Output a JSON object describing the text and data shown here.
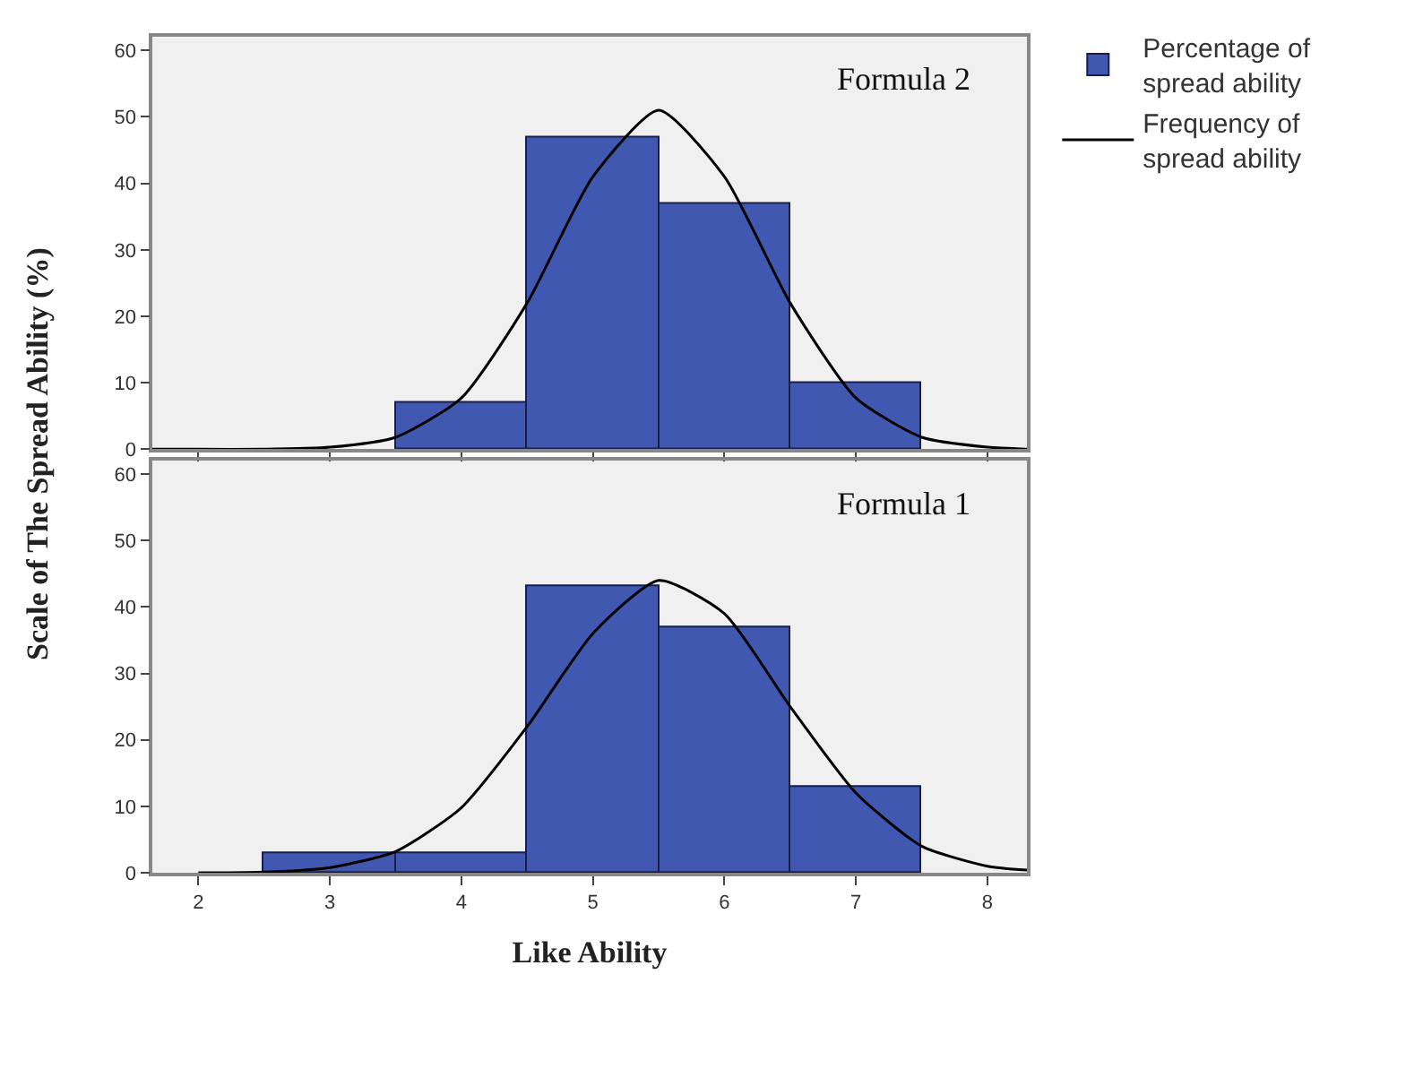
{
  "chart_data": [
    {
      "type": "histogram",
      "title": "Formula 2",
      "ylabel": "Scale of The Spread Ability (%)",
      "bins": [
        3.5,
        4.5,
        5.5,
        6.5,
        7.5
      ],
      "series": [
        {
          "name": "Percentage of spread ability",
          "color": "#4058b0",
          "values": [
            7,
            47,
            37,
            10
          ]
        },
        {
          "type": "line",
          "name": "Frequency of spread ability",
          "color": "#000000",
          "x": [
            1.65,
            2,
            2.5,
            3,
            3.5,
            4,
            4.5,
            5,
            5.5,
            6,
            6.5,
            7,
            7.5,
            8,
            8.3
          ],
          "values": [
            0,
            0,
            0,
            0.3,
            1.8,
            7.7,
            22,
            41,
            51,
            41,
            22,
            7.7,
            1.8,
            0.3,
            0
          ]
        }
      ],
      "xlim": [
        1.65,
        8.3
      ],
      "xticks": [
        2,
        3,
        4,
        5,
        6,
        7,
        8
      ],
      "ylim": [
        0,
        62
      ],
      "yticks": [
        0,
        10,
        20,
        30,
        40,
        50,
        60
      ],
      "tick_labels": "y",
      "grid": false,
      "legend": "top right"
    },
    {
      "type": "histogram",
      "title": "Formula 1",
      "xlabel": "Like Ability",
      "bins": [
        2.5,
        3.5,
        4.5,
        5.5,
        6.5,
        7.5
      ],
      "series": [
        {
          "color": "#4058b0",
          "values": [
            3,
            3,
            43,
            37,
            13
          ]
        },
        {
          "type": "line",
          "color": "#000000",
          "x": [
            2,
            2.5,
            3,
            3.5,
            4,
            4.5,
            5,
            5.5,
            6,
            6.5,
            7,
            7.5,
            8,
            8.3
          ],
          "values": [
            0,
            0.1,
            0.8,
            3.2,
            9.8,
            22,
            36,
            44,
            39,
            25,
            12,
            4,
            1,
            0.4
          ]
        }
      ],
      "xlim": [
        1.65,
        8.3
      ],
      "xticks": [
        2,
        3,
        4,
        5,
        6,
        7,
        8
      ],
      "ylim": [
        0,
        62
      ],
      "yticks": [
        0,
        10,
        20,
        30,
        40,
        50,
        60
      ],
      "grid": false,
      "legend": false
    }
  ]
}
